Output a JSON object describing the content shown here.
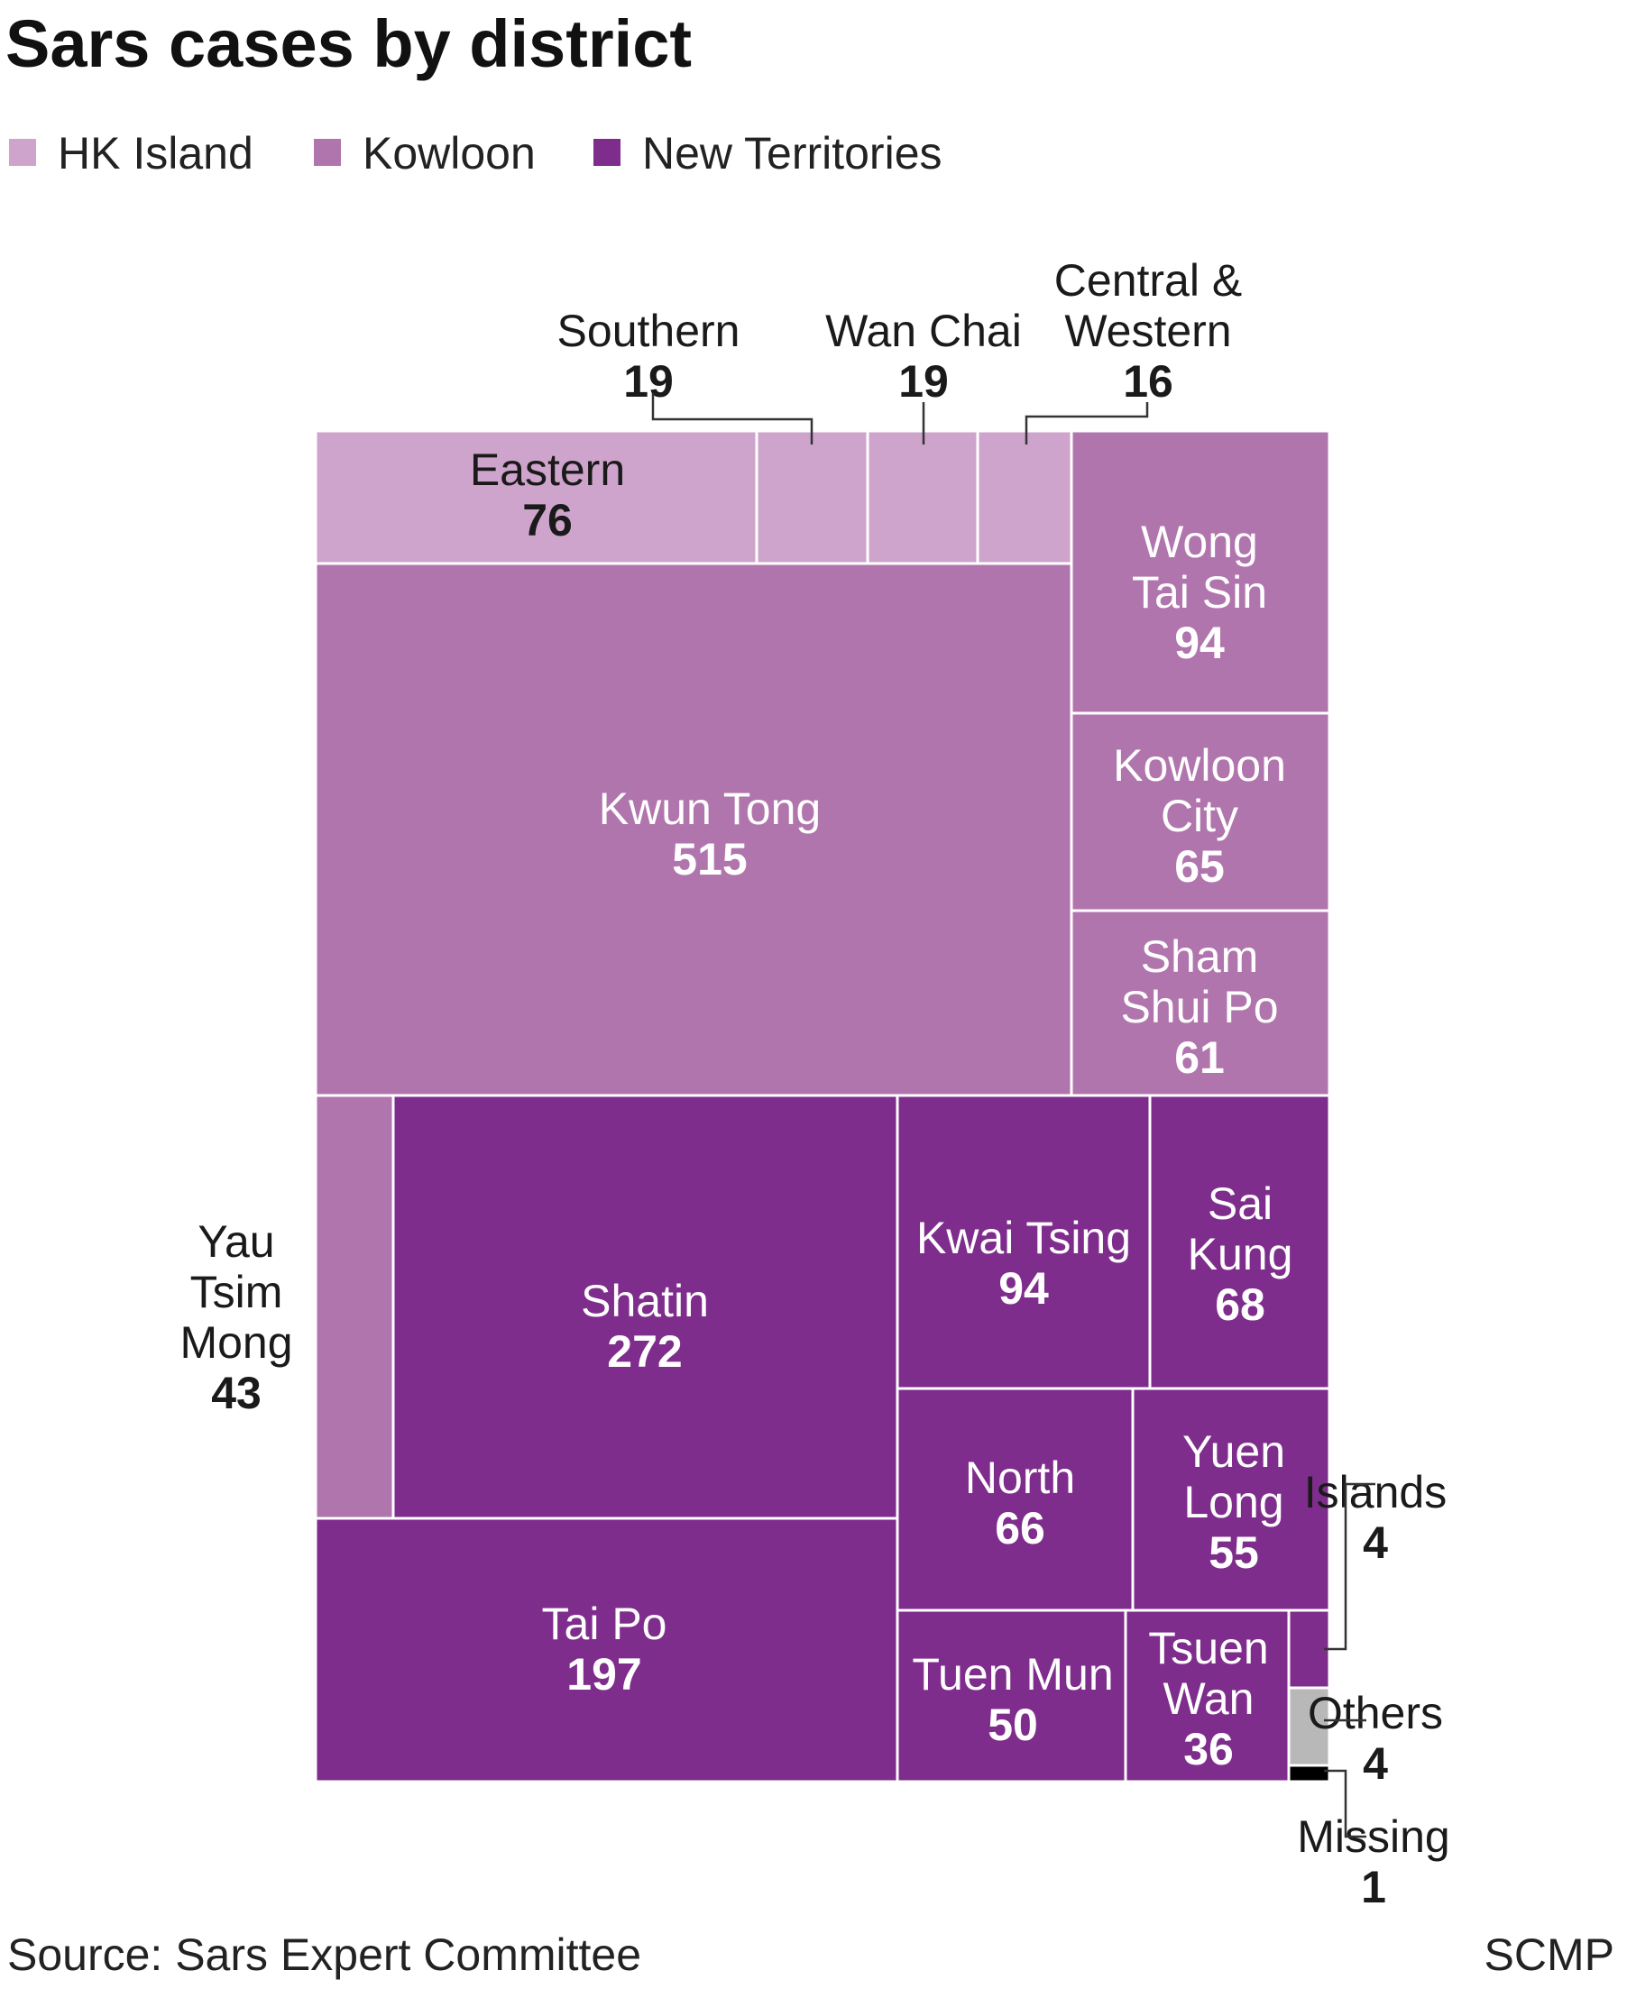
{
  "title": "Sars cases by district",
  "legend": [
    {
      "label": "HK Island",
      "color": "#cea4cc"
    },
    {
      "label": "Kowloon",
      "color": "#b175ae"
    },
    {
      "label": "New Territories",
      "color": "#7f2d8c"
    }
  ],
  "source": "Source: Sars Expert Committee",
  "credit": "SCMP",
  "chart_data": {
    "type": "treemap",
    "title": "Sars cases by district",
    "colors": {
      "HK Island": "#cea4cc",
      "Kowloon": "#b175ae",
      "New Territories": "#7f2d8c",
      "Others": "#b8b8b8",
      "Missing": "#000000"
    },
    "items": [
      {
        "id": "eastern",
        "name": [
          "Eastern"
        ],
        "value": 76,
        "region": "HK Island"
      },
      {
        "id": "southern",
        "name": [
          "Southern"
        ],
        "value": 19,
        "region": "HK Island"
      },
      {
        "id": "wan-chai",
        "name": [
          "Wan Chai"
        ],
        "value": 19,
        "region": "HK Island"
      },
      {
        "id": "central-western",
        "name": [
          "Central &",
          "Western"
        ],
        "value": 16,
        "region": "HK Island"
      },
      {
        "id": "wong-tai-sin",
        "name": [
          "Wong",
          "Tai Sin"
        ],
        "value": 94,
        "region": "Kowloon"
      },
      {
        "id": "kwun-tong",
        "name": [
          "Kwun Tong"
        ],
        "value": 515,
        "region": "Kowloon"
      },
      {
        "id": "kowloon-city",
        "name": [
          "Kowloon",
          "City"
        ],
        "value": 65,
        "region": "Kowloon"
      },
      {
        "id": "sham-shui-po",
        "name": [
          "Sham",
          "Shui Po"
        ],
        "value": 61,
        "region": "Kowloon"
      },
      {
        "id": "yau-tsim-mong",
        "name": [
          "Yau",
          "Tsim",
          "Mong"
        ],
        "value": 43,
        "region": "Kowloon"
      },
      {
        "id": "shatin",
        "name": [
          "Shatin"
        ],
        "value": 272,
        "region": "New Territories"
      },
      {
        "id": "kwai-tsing",
        "name": [
          "Kwai Tsing"
        ],
        "value": 94,
        "region": "New Territories"
      },
      {
        "id": "sai-kung",
        "name": [
          "Sai",
          "Kung"
        ],
        "value": 68,
        "region": "New Territories"
      },
      {
        "id": "tai-po",
        "name": [
          "Tai Po"
        ],
        "value": 197,
        "region": "New Territories"
      },
      {
        "id": "north",
        "name": [
          "North"
        ],
        "value": 66,
        "region": "New Territories"
      },
      {
        "id": "yuen-long",
        "name": [
          "Yuen",
          "Long"
        ],
        "value": 55,
        "region": "New Territories"
      },
      {
        "id": "tuen-mun",
        "name": [
          "Tuen Mun"
        ],
        "value": 50,
        "region": "New Territories"
      },
      {
        "id": "tsuen-wan",
        "name": [
          "Tsuen",
          "Wan"
        ],
        "value": 36,
        "region": "New Territories"
      },
      {
        "id": "islands",
        "name": [
          "Islands"
        ],
        "value": 4,
        "region": "New Territories"
      },
      {
        "id": "others",
        "name": [
          "Others"
        ],
        "value": 4,
        "region": "Others"
      },
      {
        "id": "missing",
        "name": [
          "Missing"
        ],
        "value": 1,
        "region": "Missing"
      }
    ]
  }
}
